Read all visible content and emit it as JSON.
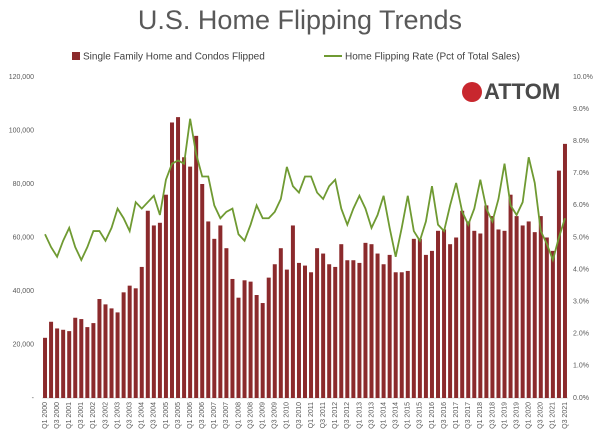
{
  "logo_text": "ATTOM",
  "chart_data": {
    "type": "combo",
    "title": "U.S. Home Flipping Trends",
    "categories": [
      "Q1 2000",
      null,
      "Q3 2000",
      null,
      "Q1 2001",
      null,
      "Q3 2001",
      null,
      "Q1 2002",
      null,
      "Q3 2002",
      null,
      "Q1 2003",
      null,
      "Q3 2003",
      null,
      "Q1 2004",
      null,
      "Q3 2004",
      null,
      "Q1 2005",
      null,
      "Q3 2005",
      null,
      "Q1 2006",
      null,
      "Q3 2006",
      null,
      "Q1 2007",
      null,
      "Q3 2007",
      null,
      "Q1 2008",
      null,
      "Q3 2008",
      null,
      "Q1 2009",
      null,
      "Q3 2009",
      null,
      "Q1 2010",
      null,
      "Q3 2010",
      null,
      "Q1 2011",
      null,
      "Q3 2011",
      null,
      "Q1 2012",
      null,
      "Q3 2012",
      null,
      "Q1 2013",
      null,
      "Q3 2013",
      null,
      "Q1 2014",
      null,
      "Q3 2014",
      null,
      "Q1 2015",
      null,
      "Q3 2015",
      null,
      "Q1 2016",
      null,
      "Q3 2016",
      null,
      "Q1 2017",
      null,
      "Q3 2017",
      null,
      "Q1 2018",
      null,
      "Q3 2018",
      null,
      "Q1 2019",
      null,
      "Q3 2019",
      null,
      "Q1 2020",
      null,
      "Q3 2020",
      null,
      "Q1 2021",
      null,
      "Q3 2021"
    ],
    "series": [
      {
        "name": "Single Family Home and Condos Flipped",
        "type": "bar",
        "color": "#8b2a2c",
        "values": [
          22500,
          28500,
          26000,
          25500,
          25000,
          30000,
          29500,
          26500,
          28000,
          37000,
          35000,
          33500,
          32000,
          39500,
          42000,
          41000,
          49000,
          70000,
          64500,
          65500,
          76000,
          103000,
          105000,
          90000,
          86500,
          98000,
          80000,
          66000,
          59500,
          64500,
          56000,
          44500,
          37500,
          44000,
          43500,
          38500,
          35500,
          45000,
          50000,
          56000,
          48000,
          64500,
          50500,
          49500,
          47000,
          56000,
          54000,
          50000,
          49000,
          57500,
          51500,
          51500,
          50500,
          58000,
          57500,
          54000,
          50000,
          53500,
          47000,
          47000,
          47500,
          59500,
          59500,
          53500,
          55000,
          62500,
          63000,
          57500,
          60000,
          70000,
          66000,
          62500,
          61500,
          72000,
          68000,
          63000,
          62500,
          76000,
          68000,
          64500,
          66000,
          62000,
          68000,
          60000,
          55000,
          85000,
          95000
        ]
      },
      {
        "name": "Home Flipping Rate (Pct of Total Sales)",
        "type": "line",
        "axis": "y2",
        "color": "#6f9a32",
        "values": [
          5.1,
          4.7,
          4.4,
          4.9,
          5.3,
          4.7,
          4.3,
          4.7,
          5.2,
          5.2,
          4.9,
          5.3,
          5.9,
          5.6,
          5.2,
          6.1,
          5.9,
          6.1,
          6.3,
          5.7,
          6.8,
          7.3,
          7.4,
          7.3,
          8.7,
          7.6,
          6.9,
          6.9,
          6.0,
          5.6,
          5.8,
          5.9,
          5.1,
          4.9,
          5.4,
          6.0,
          5.6,
          5.6,
          5.8,
          6.2,
          7.2,
          6.6,
          6.4,
          6.9,
          6.9,
          6.4,
          6.2,
          6.6,
          6.8,
          5.9,
          5.4,
          5.9,
          6.3,
          5.9,
          5.3,
          5.7,
          6.3,
          5.3,
          4.4,
          5.3,
          6.3,
          5.2,
          4.9,
          5.5,
          6.6,
          5.4,
          5.2,
          6.0,
          6.7,
          5.8,
          5.4,
          5.9,
          6.8,
          5.9,
          5.5,
          6.2,
          7.3,
          6.0,
          5.7,
          6.1,
          7.5,
          6.7,
          5.2,
          4.8,
          4.3,
          5.0,
          5.6
        ]
      }
    ],
    "ylim": [
      0,
      120000
    ],
    "yticks": [
      {
        "value": 0,
        "label": "-"
      },
      {
        "value": 20000,
        "label": "20,000"
      },
      {
        "value": 40000,
        "label": "40,000"
      },
      {
        "value": 60000,
        "label": "60,000"
      },
      {
        "value": 80000,
        "label": "80,000"
      },
      {
        "value": 100000,
        "label": "100,000"
      },
      {
        "value": 120000,
        "label": "120,000"
      }
    ],
    "y2lim": [
      0,
      10
    ],
    "y2ticks": [
      {
        "value": 0,
        "label": "0.0%"
      },
      {
        "value": 1,
        "label": "1.0%"
      },
      {
        "value": 2,
        "label": "2.0%"
      },
      {
        "value": 3,
        "label": "3.0%"
      },
      {
        "value": 4,
        "label": "4.0%"
      },
      {
        "value": 5,
        "label": "5.0%"
      },
      {
        "value": 6,
        "label": "6.0%"
      },
      {
        "value": 7,
        "label": "7.0%"
      },
      {
        "value": 8,
        "label": "8.0%"
      },
      {
        "value": 9,
        "label": "9.0%"
      },
      {
        "value": 10,
        "label": "10.0%"
      }
    ],
    "grid": false
  }
}
